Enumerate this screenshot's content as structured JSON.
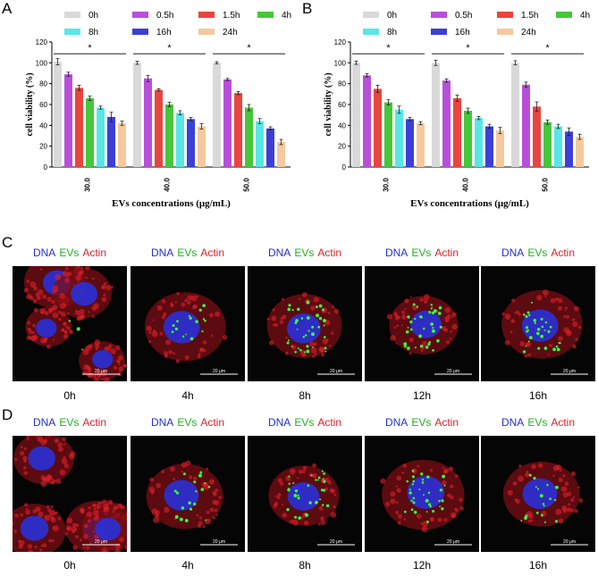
{
  "panels": {
    "A": "A",
    "B": "B",
    "C": "C",
    "D": "D"
  },
  "colors": {
    "0h": "#d9d9d9",
    "0.5h": "#b84fd9",
    "1.5h": "#e8453f",
    "4h": "#46c63a",
    "8h": "#58e6e6",
    "16h": "#3b3fd6",
    "24h": "#f5c99e"
  },
  "legend": [
    "0h",
    "0.5h",
    "1.5h",
    "4h",
    "8h",
    "16h",
    "24h"
  ],
  "chart_data": [
    {
      "type": "bar",
      "panel": "A",
      "categories": [
        "30.0",
        "40.0",
        "50.0"
      ],
      "xlabel": "EVs concentrations (μg/mL)",
      "ylabel": "cell viability (%)",
      "ylim": [
        0,
        120
      ],
      "yticks": [
        0,
        20,
        40,
        60,
        80,
        100,
        120
      ],
      "significance": [
        "*",
        "*",
        "*"
      ],
      "series": [
        {
          "name": "0h",
          "values": [
            101,
            100,
            100
          ],
          "errors": [
            3,
            1.5,
            1
          ]
        },
        {
          "name": "0.5h",
          "values": [
            89,
            85,
            84
          ],
          "errors": [
            2,
            3,
            1
          ]
        },
        {
          "name": "1.5h",
          "values": [
            76,
            74,
            71
          ],
          "errors": [
            2.5,
            1,
            1.5
          ]
        },
        {
          "name": "4h",
          "values": [
            66,
            60,
            57
          ],
          "errors": [
            2,
            2,
            3
          ]
        },
        {
          "name": "8h",
          "values": [
            57,
            52,
            44
          ],
          "errors": [
            1.5,
            2,
            2.5
          ]
        },
        {
          "name": "16h",
          "values": [
            48,
            46,
            37
          ],
          "errors": [
            4.5,
            1.5,
            1.5
          ]
        },
        {
          "name": "24h",
          "values": [
            42,
            39,
            24
          ],
          "errors": [
            2,
            2.5,
            2.5
          ]
        }
      ]
    },
    {
      "type": "bar",
      "panel": "B",
      "categories": [
        "30.0",
        "40.0",
        "50.0"
      ],
      "xlabel": "EVs concentrations (μg/mL)",
      "ylabel": "cell viability (%)",
      "ylim": [
        0,
        120
      ],
      "yticks": [
        0,
        20,
        40,
        60,
        80,
        100,
        120
      ],
      "significance": [
        "*",
        "*",
        "*"
      ],
      "series": [
        {
          "name": "0h",
          "values": [
            100,
            100,
            100
          ],
          "errors": [
            1.5,
            2.5,
            2
          ]
        },
        {
          "name": "0.5h",
          "values": [
            88,
            83,
            79
          ],
          "errors": [
            1.5,
            1.5,
            2.5
          ]
        },
        {
          "name": "1.5h",
          "values": [
            75,
            66,
            58
          ],
          "errors": [
            3.5,
            3,
            4.5
          ]
        },
        {
          "name": "4h",
          "values": [
            62,
            54,
            43
          ],
          "errors": [
            2.5,
            2.5,
            2
          ]
        },
        {
          "name": "8h",
          "values": [
            55,
            47,
            39
          ],
          "errors": [
            3.5,
            1.5,
            2
          ]
        },
        {
          "name": "16h",
          "values": [
            46,
            39,
            34
          ],
          "errors": [
            1.5,
            2,
            3.5
          ]
        },
        {
          "name": "24h",
          "values": [
            42,
            35,
            29
          ],
          "errors": [
            1.5,
            3,
            2.5
          ]
        }
      ]
    }
  ],
  "microscopy": {
    "channels": {
      "dna": "DNA",
      "evs": "EVs",
      "actin": "Actin"
    },
    "channel_colors": {
      "dna": "#1f2fd6",
      "evs": "#20b020",
      "actin": "#e0202a"
    },
    "scale_bar": "20 μm",
    "rowC": [
      {
        "time": "0h",
        "evs_density": 0.05
      },
      {
        "time": "4h",
        "evs_density": 0.25
      },
      {
        "time": "8h",
        "evs_density": 0.6
      },
      {
        "time": "12h",
        "evs_density": 0.55
      },
      {
        "time": "16h",
        "evs_density": 0.5
      }
    ],
    "rowD": [
      {
        "time": "0h",
        "evs_density": 0.0
      },
      {
        "time": "4h",
        "evs_density": 0.3
      },
      {
        "time": "8h",
        "evs_density": 0.5
      },
      {
        "time": "12h",
        "evs_density": 0.55
      },
      {
        "time": "16h",
        "evs_density": 0.3
      }
    ]
  }
}
